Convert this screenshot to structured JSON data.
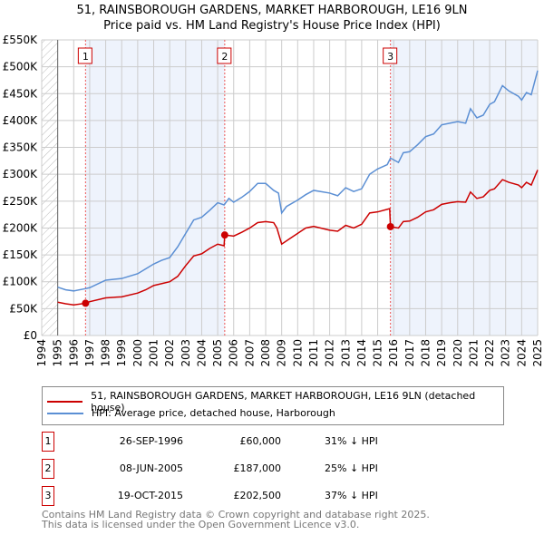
{
  "title": "51, RAINSBOROUGH GARDENS, MARKET HARBOROUGH, LE16 9LN",
  "subtitle": "Price paid vs. HM Land Registry's House Price Index (HPI)",
  "chart_data": {
    "type": "line",
    "xlim": [
      1994,
      2025
    ],
    "ylim": [
      0,
      550000
    ],
    "x_ticks": [
      "1994",
      "1995",
      "1996",
      "1997",
      "1998",
      "1999",
      "2000",
      "2001",
      "2002",
      "2003",
      "2004",
      "2005",
      "2006",
      "2007",
      "2008",
      "2009",
      "2010",
      "2011",
      "2012",
      "2013",
      "2014",
      "2015",
      "2016",
      "2017",
      "2018",
      "2019",
      "2020",
      "2021",
      "2022",
      "2023",
      "2024",
      "2025"
    ],
    "y_ticks": [
      {
        "v": 0,
        "label": "£0"
      },
      {
        "v": 50000,
        "label": "£50K"
      },
      {
        "v": 100000,
        "label": "£100K"
      },
      {
        "v": 150000,
        "label": "£150K"
      },
      {
        "v": 200000,
        "label": "£200K"
      },
      {
        "v": 250000,
        "label": "£250K"
      },
      {
        "v": 300000,
        "label": "£300K"
      },
      {
        "v": 350000,
        "label": "£350K"
      },
      {
        "v": 400000,
        "label": "£400K"
      },
      {
        "v": 450000,
        "label": "£450K"
      },
      {
        "v": 500000,
        "label": "£500K"
      },
      {
        "v": 550000,
        "label": "£550K"
      }
    ],
    "grid": true,
    "series": [
      {
        "name": "51, RAINSBOROUGH GARDENS, MARKET HARBOROUGH, LE16 9LN (detached house)",
        "color": "#cc0000",
        "x": [
          1995,
          1995.5,
          1996,
          1996.74,
          1997,
          1998,
          1999,
          2000,
          2000.5,
          2001,
          2002,
          2002.5,
          2003,
          2003.5,
          2004,
          2004.5,
          2005,
          2005.4,
          2005.44,
          2006,
          2006.5,
          2007,
          2007.5,
          2008,
          2008.5,
          2008.7,
          2009,
          2009.5,
          2010,
          2010.5,
          2011,
          2012,
          2012.5,
          2013,
          2013.5,
          2014,
          2014.5,
          2015,
          2015.75,
          2015.8,
          2016.3,
          2016.6,
          2017,
          2017.5,
          2018,
          2018.5,
          2019,
          2019.5,
          2020,
          2020.5,
          2020.8,
          2021.2,
          2021.6,
          2022,
          2022.3,
          2022.8,
          2023.2,
          2023.8,
          2024,
          2024.3,
          2024.6,
          2025
        ],
        "y": [
          62000,
          59000,
          57000,
          60000,
          63000,
          70000,
          72000,
          79000,
          85000,
          93000,
          100000,
          110000,
          130000,
          148000,
          152000,
          162000,
          170000,
          167000,
          187000,
          185000,
          192000,
          200000,
          210000,
          212000,
          210000,
          200000,
          170000,
          180000,
          190000,
          200000,
          203000,
          196000,
          194000,
          205000,
          200000,
          207000,
          228000,
          230000,
          236000,
          202500,
          200000,
          212000,
          213000,
          220000,
          230000,
          234000,
          244000,
          247000,
          249000,
          248000,
          267000,
          255000,
          258000,
          270000,
          273000,
          290000,
          285000,
          280000,
          275000,
          285000,
          280000,
          308000
        ]
      },
      {
        "name": "HPI: Average price, detached house, Harborough",
        "color": "#5b8fd4",
        "x": [
          1995,
          1995.5,
          1996,
          1996.7,
          1997,
          1998,
          1999,
          2000,
          2000.5,
          2001,
          2001.5,
          2002,
          2002.5,
          2003,
          2003.5,
          2004,
          2004.5,
          2005,
          2005.4,
          2005.7,
          2006,
          2006.5,
          2007,
          2007.5,
          2008,
          2008.5,
          2008.8,
          2009,
          2009.3,
          2010,
          2010.5,
          2011,
          2012,
          2012.5,
          2013,
          2013.5,
          2014,
          2014.5,
          2015,
          2015.6,
          2015.8,
          2016.3,
          2016.6,
          2017,
          2017.5,
          2018,
          2018.5,
          2019,
          2019.5,
          2020,
          2020.5,
          2020.8,
          2021.2,
          2021.6,
          2022,
          2022.3,
          2022.8,
          2023.2,
          2023.8,
          2024,
          2024.3,
          2024.6,
          2025
        ],
        "y": [
          90000,
          85000,
          83000,
          87000,
          89000,
          103000,
          106000,
          115000,
          124000,
          133000,
          140000,
          145000,
          165000,
          190000,
          215000,
          220000,
          233000,
          247000,
          243000,
          255000,
          248000,
          257000,
          268000,
          283000,
          283000,
          270000,
          265000,
          228000,
          240000,
          252000,
          262000,
          270000,
          265000,
          260000,
          275000,
          268000,
          273000,
          300000,
          310000,
          318000,
          330000,
          322000,
          340000,
          342000,
          355000,
          370000,
          375000,
          392000,
          395000,
          398000,
          395000,
          422000,
          405000,
          410000,
          430000,
          435000,
          465000,
          455000,
          445000,
          438000,
          452000,
          448000,
          493000
        ]
      }
    ],
    "sales": [
      {
        "label": "1",
        "x": 1996.74,
        "y": 60000
      },
      {
        "label": "2",
        "x": 2005.44,
        "y": 187000
      },
      {
        "label": "3",
        "x": 2015.8,
        "y": 202500
      }
    ],
    "legend_placement": "bottom"
  },
  "legend": {
    "property": "51, RAINSBOROUGH GARDENS, MARKET HARBOROUGH, LE16 9LN (detached house)",
    "hpi": "HPI: Average price, detached house, Harborough"
  },
  "transactions": [
    {
      "num": "1",
      "date": "26-SEP-1996",
      "price": "£60,000",
      "hpi": "31% ↓ HPI"
    },
    {
      "num": "2",
      "date": "08-JUN-2005",
      "price": "£187,000",
      "hpi": "25% ↓ HPI"
    },
    {
      "num": "3",
      "date": "19-OCT-2015",
      "price": "£202,500",
      "hpi": "37% ↓ HPI"
    }
  ],
  "footer": {
    "line1": "Contains HM Land Registry data © Crown copyright and database right 2025.",
    "line2": "This data is licensed under the Open Government Licence v3.0."
  }
}
